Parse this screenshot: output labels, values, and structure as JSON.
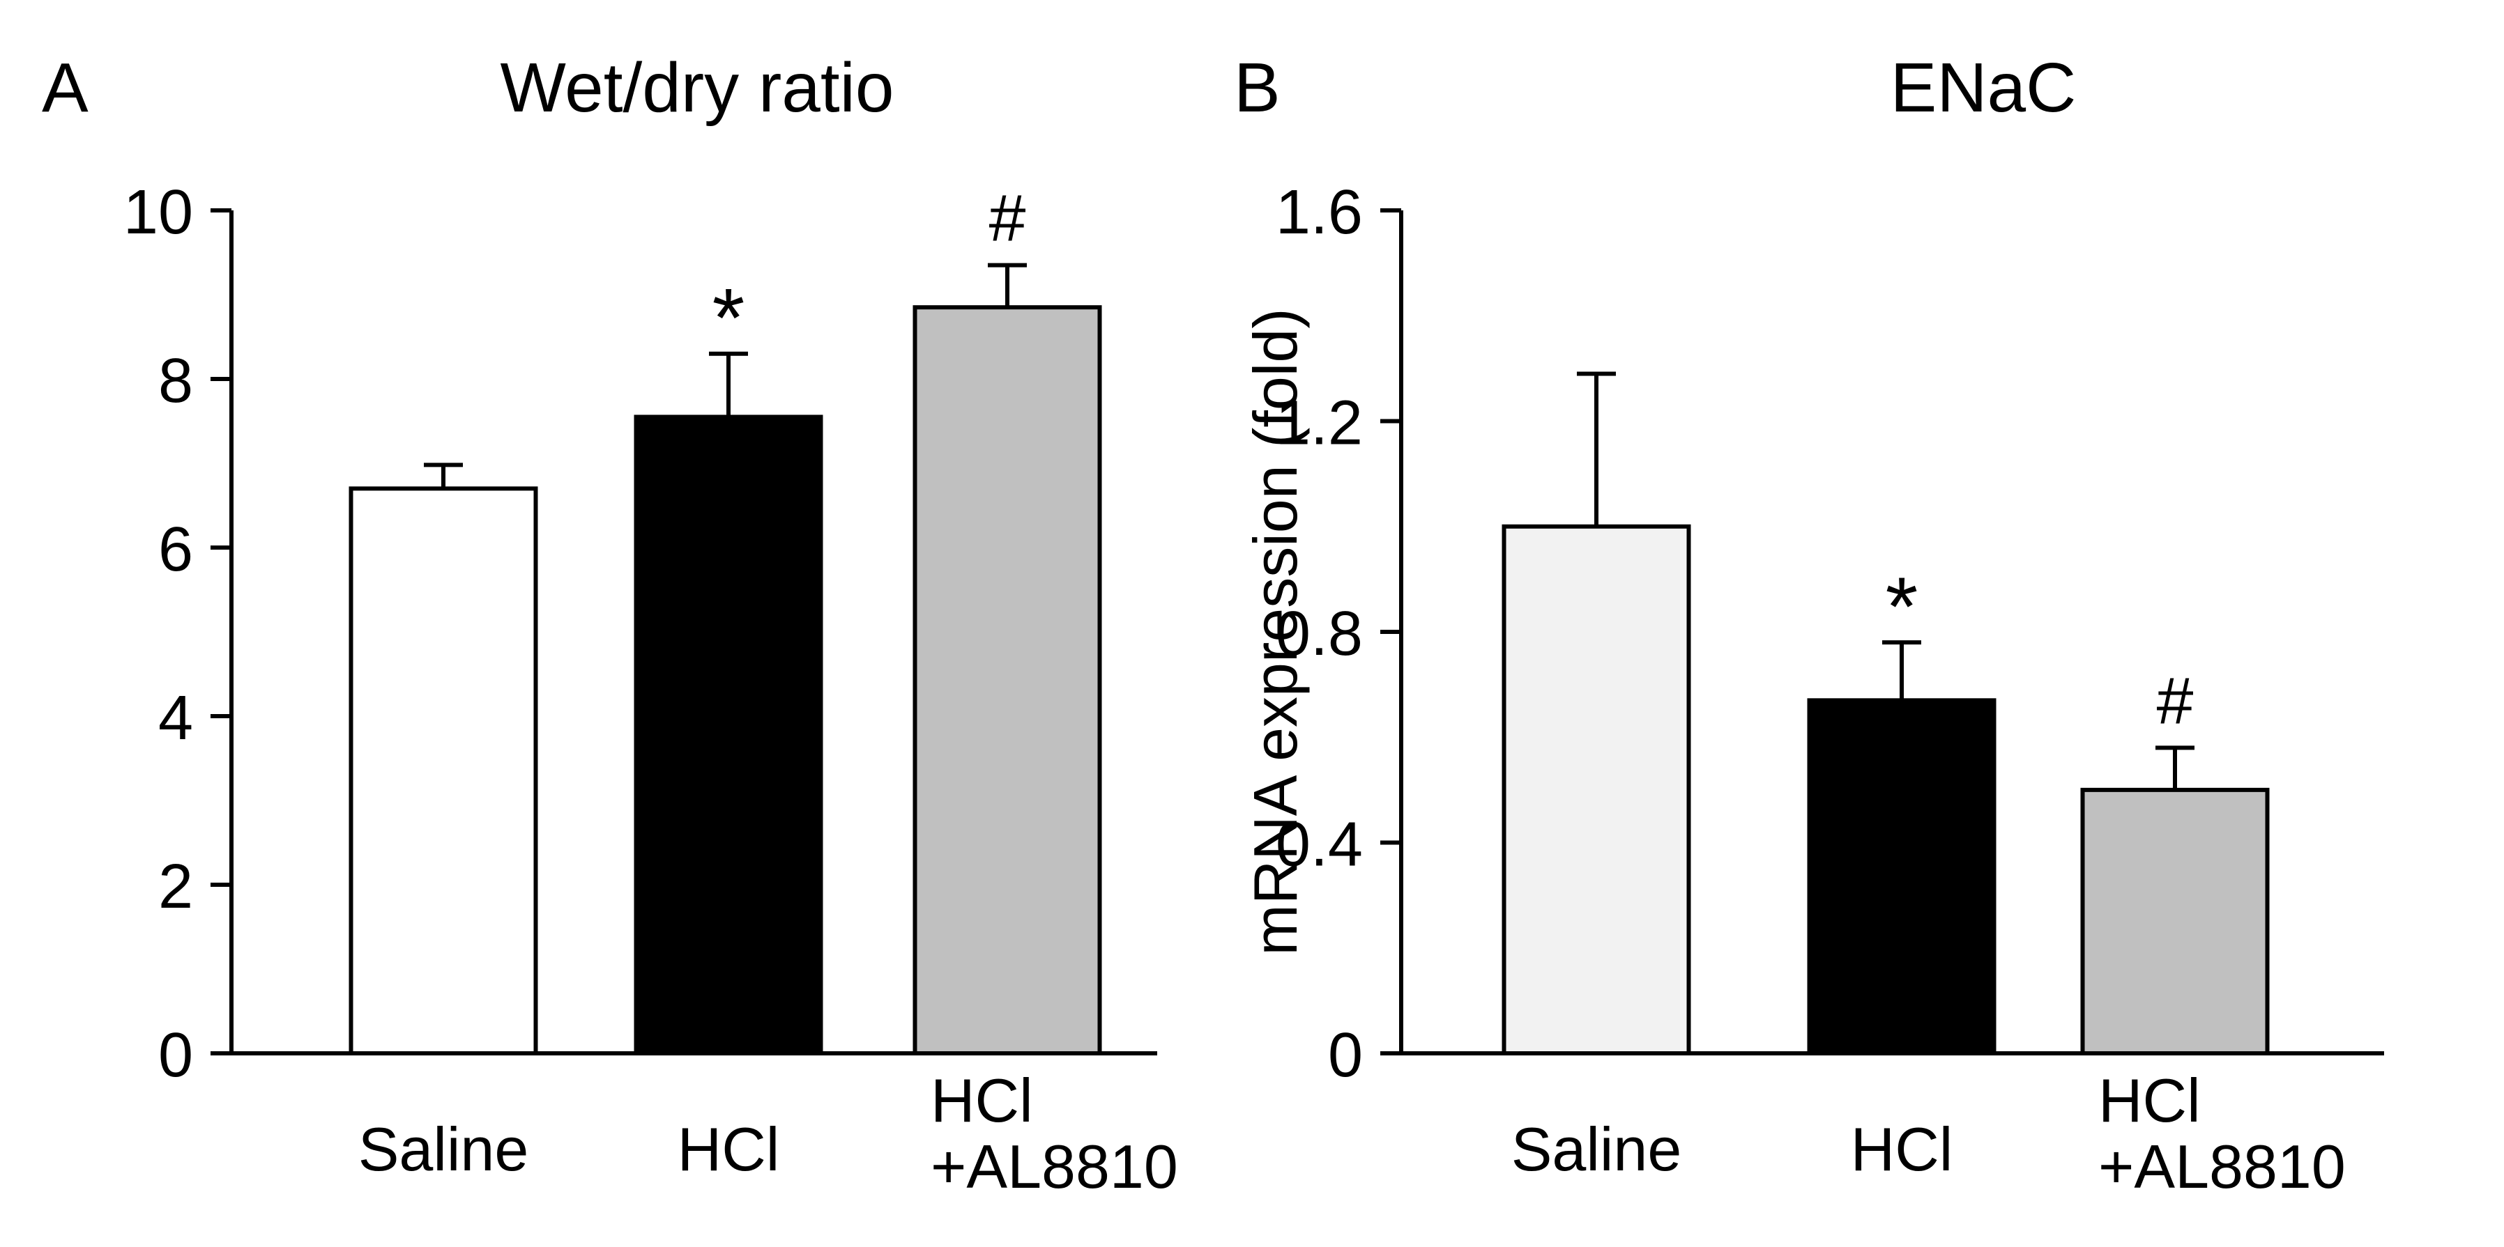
{
  "chart_data": [
    {
      "type": "bar",
      "panel_label": "A",
      "title": "Wet/dry ratio",
      "xlabel": "",
      "ylabel": "",
      "categories": [
        [
          "Saline"
        ],
        [
          "HCl"
        ],
        [
          "HCl",
          "+AL8810"
        ]
      ],
      "values": [
        6.7,
        7.55,
        8.85
      ],
      "errors": [
        0.28,
        0.75,
        0.5
      ],
      "annotations": [
        "",
        "*",
        "#"
      ],
      "colors": [
        "#ffffff",
        "#000000",
        "#c0c0c0"
      ],
      "ylim": [
        0,
        10
      ],
      "yticks": [
        "0",
        "2",
        "4",
        "6",
        "8",
        "10"
      ],
      "ytick_values": [
        0,
        2,
        4,
        6,
        8,
        10
      ],
      "grid": false,
      "legend": "none"
    },
    {
      "type": "bar",
      "panel_label": "B",
      "title": "ENaC",
      "xlabel": "",
      "ylabel": "mRNA expression (fold)",
      "categories": [
        [
          "Saline"
        ],
        [
          "HCl"
        ],
        [
          "HCl",
          "+AL8810"
        ]
      ],
      "values": [
        1.0,
        0.67,
        0.5
      ],
      "errors": [
        0.29,
        0.11,
        0.08
      ],
      "annotations": [
        "",
        "*",
        "#"
      ],
      "colors": [
        "#f2f2f2",
        "#000000",
        "#c0c0c0"
      ],
      "ylim": [
        0,
        1.6
      ],
      "yticks": [
        "0",
        "0.4",
        "0.8",
        "1.2",
        "1.6"
      ],
      "ytick_values": [
        0,
        0.4,
        0.8,
        1.2,
        1.6
      ],
      "grid": false,
      "legend": "none"
    }
  ]
}
